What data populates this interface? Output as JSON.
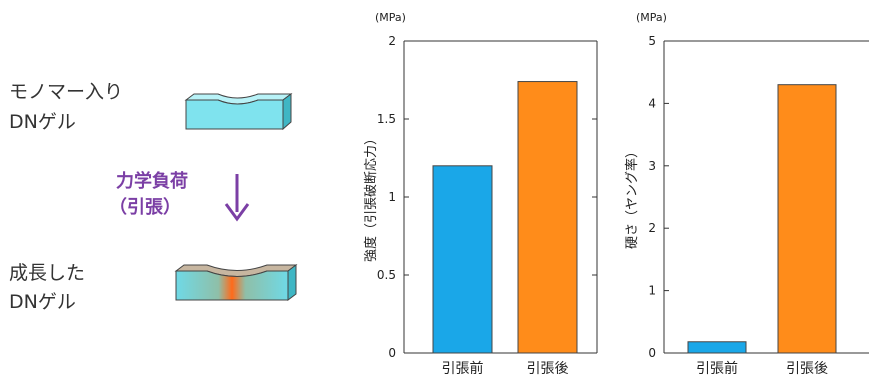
{
  "left_panel": {
    "monomer_gel_line1": "モノマー入り",
    "monomer_gel_line2": "DNゲル",
    "force_line1": "力学負荷",
    "force_line2": "（引張）",
    "grown_gel_line1": "成長した",
    "grown_gel_line2": "DNゲル",
    "arrow_color": "#7b3fa5",
    "gel_color": "#7fe3ee",
    "grown_gel_highlight": "#ff6a1a"
  },
  "colors": {
    "before_bar": "#1aa7e8",
    "after_bar": "#ff8c1a"
  },
  "chart_data": [
    {
      "type": "bar",
      "categories": [
        "引張前",
        "引張後"
      ],
      "values": [
        1.2,
        1.74
      ],
      "ylabel": "強度（引張破断応力）",
      "unit": "(MPa)",
      "ylim": [
        0,
        2
      ],
      "yticks": [
        "0",
        "0.5",
        "1",
        "1.5",
        "2"
      ]
    },
    {
      "type": "bar",
      "categories": [
        "引張前",
        "引張後"
      ],
      "values": [
        0.18,
        4.3
      ],
      "ylabel": "硬さ（ヤング率）",
      "unit": "(MPa)",
      "ylim": [
        0,
        5
      ],
      "yticks": [
        "0",
        "1",
        "2",
        "3",
        "4",
        "5"
      ]
    }
  ]
}
